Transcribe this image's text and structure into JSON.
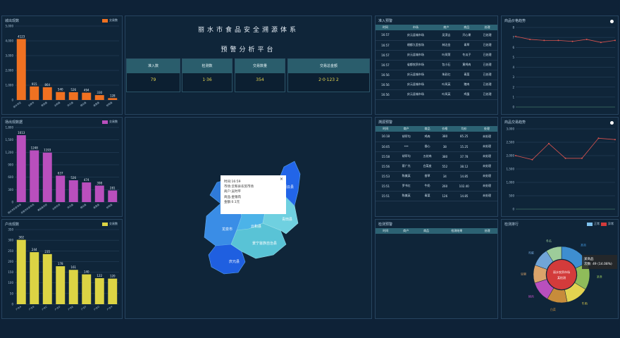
{
  "app": {
    "title": "丽水市食品安全溯源体系",
    "subtitle": "预警分析平台"
  },
  "stats": [
    {
      "label": "准入数",
      "value": "79"
    },
    {
      "label": "检测数",
      "value": "1·36"
    },
    {
      "label": "交易数量",
      "value": "354"
    },
    {
      "label": "交易总金额",
      "value": "2·0·123 2"
    }
  ],
  "panels": {
    "p1": {
      "title": "城出现数",
      "legend": "交易数"
    },
    "p2": {
      "title": "场出现数据",
      "legend": "交易数"
    },
    "p3": {
      "title": "户出现数",
      "legend": "交易数"
    },
    "entry": {
      "title": "准入预警"
    },
    "trace": {
      "title": "溯源预警"
    },
    "check": {
      "title": "检测预警"
    },
    "price": {
      "title": "商品价格趋势"
    },
    "amount": {
      "title": "商品交易趋势"
    },
    "rank": {
      "title": "检测排行"
    }
  },
  "chart_data": [
    {
      "type": "bar",
      "id": "p1",
      "categories": [
        "丽水市区",
        "龙泉市",
        "青田县",
        "云和县",
        "庆元县",
        "缙云县",
        "遂昌县",
        "松阳县"
      ],
      "values": [
        4123,
        915,
        864,
        540,
        526,
        494,
        330,
        128
      ],
      "ylim": [
        0,
        5000
      ],
      "yticks": [
        "0",
        "1,000",
        "2,000",
        "3,000",
        "4,000",
        "5,000"
      ],
      "color": "#f07121"
    },
    {
      "type": "bar",
      "id": "p2",
      "categories": [
        "丽水市农贸市场",
        "龙泉市农贸市场",
        "青田县农贸",
        "云和农贸",
        "庆元县",
        "缙云县",
        "遂昌县",
        "松阳县"
      ],
      "values": [
        1613,
        1248,
        1193,
        637,
        526,
        474,
        398,
        281
      ],
      "ylim": [
        0,
        1800
      ],
      "yticks": [
        "0",
        "300",
        "600",
        "900",
        "1,200",
        "1,500",
        "1,800"
      ],
      "color": "#b94fbd"
    },
    {
      "type": "bar",
      "id": "p3",
      "categories": [
        "户主A",
        "户主B",
        "户主C",
        "户主D",
        "户主E",
        "户主F",
        "户主G",
        "户主H"
      ],
      "values": [
        302,
        244,
        235,
        178,
        161,
        140,
        122,
        120
      ],
      "ylim": [
        0,
        350
      ],
      "yticks": [
        "0",
        "50",
        "100",
        "150",
        "200",
        "250",
        "300",
        "350"
      ],
      "color": "#dcd444"
    },
    {
      "type": "line",
      "id": "price",
      "values": [
        7.1,
        6.8,
        6.7,
        6.7,
        6.6,
        6.8,
        6.5,
        6.7
      ],
      "ylim": [
        0,
        8
      ],
      "yticks": [
        "0",
        "1",
        "2",
        "3",
        "4",
        "5",
        "6",
        "7",
        "8"
      ],
      "color": "#d9534f"
    },
    {
      "type": "line",
      "id": "amount",
      "values": [
        2000,
        1850,
        2450,
        1900,
        1900,
        2650,
        2600
      ],
      "ylim": [
        0,
        3000
      ],
      "yticks": [
        "0",
        "500",
        "1,000",
        "1,500",
        "2,000",
        "2,500",
        "3,000"
      ],
      "color": "#d9534f"
    },
    {
      "type": "pie",
      "id": "rank",
      "center_labels": [
        "丽水农贸市场",
        "某检测"
      ],
      "tooltip": [
        "某商品",
        "次数: 49 (14.08%)"
      ],
      "slices": [
        {
          "name": "某商",
          "value": 14,
          "color": "#3e8ed0"
        },
        {
          "name": "某食",
          "value": 12,
          "color": "#8fbc5a"
        },
        {
          "name": "牛肉",
          "value": 10,
          "color": "#e3d350"
        },
        {
          "name": "白菜",
          "value": 9,
          "color": "#c78c3b"
        },
        {
          "name": "猪肉",
          "value": 9,
          "color": "#b94fbd"
        },
        {
          "name": "豆腐",
          "value": 8,
          "color": "#dba46a"
        },
        {
          "name": "鸡蛋",
          "value": 8,
          "color": "#71a5d8"
        },
        {
          "name": "冬瓜",
          "value": 7,
          "color": "#9dcc9a"
        }
      ],
      "legend": [
        "正常",
        "异常"
      ]
    }
  ],
  "tables": {
    "entry": {
      "headers": [
        "时间",
        "市场",
        "商户",
        "商品",
        "处理"
      ],
      "rows": [
        [
          "16:57",
          "庆元县城市场",
          "吴滨吉",
          "开心果",
          "已处理"
        ],
        [
          "16:57",
          "缙都九里农场",
          "林达金",
          "青草",
          "已处理"
        ],
        [
          "16:57",
          "庆元县城市场",
          "叶凤荣",
          "冬瓜子",
          "已处理"
        ],
        [
          "16:57",
          "省都农贸市场",
          "包小石",
          "黄鸡肉",
          "已处理"
        ],
        [
          "16:56",
          "庆元县城市场",
          "朱彩红",
          "青菜",
          "已处理"
        ],
        [
          "16:56",
          "庆元县城市场",
          "叶凤英",
          "猪肉",
          "已处理"
        ],
        [
          "16:56",
          "庆元县城市场",
          "叶凤英",
          "鸡蛋",
          "已处理"
        ]
      ]
    },
    "trace": {
      "headers": [
        "时间",
        "商户",
        "商品",
        "价格",
        "均价",
        "处理"
      ],
      "rows": [
        [
          "16:18",
          "胡军均",
          "鸡肉",
          "380",
          "85.25",
          "未处理"
        ],
        [
          "16:05",
          "***",
          "香心",
          "38",
          "15.25",
          "未处理"
        ],
        [
          "15:58",
          "胡军均",
          "五花肉",
          "380",
          "37.78",
          "未处理"
        ],
        [
          "15:56",
          "蔡广光",
          "白菜皮",
          "552",
          "38.12",
          "未处理"
        ],
        [
          "15:53",
          "陈美英",
          "香草",
          "34",
          "14.85",
          "未处理"
        ],
        [
          "15:51",
          "罗书红",
          "牛奶",
          "260",
          "102.40",
          "未处理"
        ],
        [
          "15:51",
          "陈美英",
          "青菜",
          "126",
          "14.85",
          "未处理"
        ]
      ]
    },
    "check": {
      "headers": [
        "时间",
        "商户",
        "商品",
        "检测结果",
        "处理"
      ]
    }
  },
  "map": {
    "tooltip": [
      "时间:16:59",
      "市场:云和县农贸市场",
      "商户:吴时平",
      "商品:金银肉",
      "金额:0.1元"
    ],
    "close": "×",
    "labels": [
      "龙泉市",
      "云和县",
      "景宁畲族自治县",
      "庆元县",
      "缙云县",
      "青田县"
    ]
  }
}
